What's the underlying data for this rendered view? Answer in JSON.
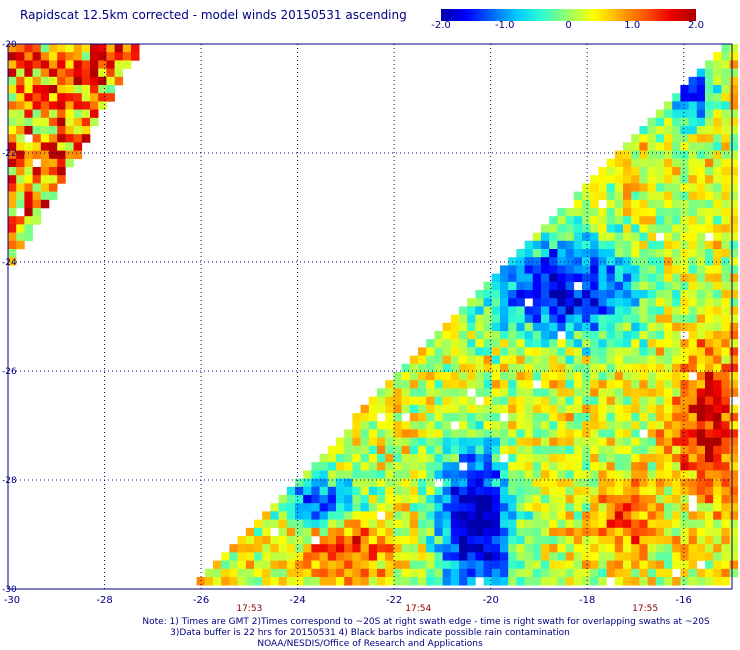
{
  "title": "Rapidscat 12.5km corrected - model winds 20150531 ascending",
  "colorbar": {
    "tick_labels": [
      "-2.0",
      "-1.0",
      "0",
      "1.0",
      "2.0"
    ],
    "tick_values": [
      -2.0,
      -1.0,
      0,
      1.0,
      2.0
    ],
    "range": [
      -2.0,
      2.0
    ],
    "colors": [
      "#0000aa",
      "#0000ff",
      "#0066ff",
      "#00ccff",
      "#33ffcc",
      "#99ff66",
      "#ffff00",
      "#ffaa00",
      "#ff5500",
      "#ee0000",
      "#aa0000"
    ]
  },
  "axes": {
    "x_range": [
      -30,
      -15
    ],
    "y_range": [
      -30,
      -20
    ],
    "x_tick_labels": [
      "-30",
      "-28",
      "-26",
      "-24",
      "-22",
      "-20",
      "-18",
      "-16"
    ],
    "x_ticks": [
      -30,
      -28,
      -26,
      -24,
      -22,
      -20,
      -18,
      -16
    ],
    "y_tick_labels": [
      "-20",
      "-22",
      "-24",
      "-26",
      "-28",
      "-30"
    ],
    "y_ticks": [
      -20,
      -22,
      -24,
      -26,
      -28,
      -30
    ],
    "grid": "dotted"
  },
  "times": [
    {
      "label": "17:53",
      "lon": -25
    },
    {
      "label": "17:54",
      "lon": -21.5
    },
    {
      "label": "17:55",
      "lon": -16.8
    }
  ],
  "notes": [
    "Note: 1) Times are GMT 2)Times correspond to ~20S at right swath edge - time is right swath for overlapping swaths at ~20S",
    "3)Data buffer is 22 hrs for 20150531 4) Black barbs indicate possible rain contamination",
    "NOAA/NESDIS/Office of Research and Applications"
  ]
}
